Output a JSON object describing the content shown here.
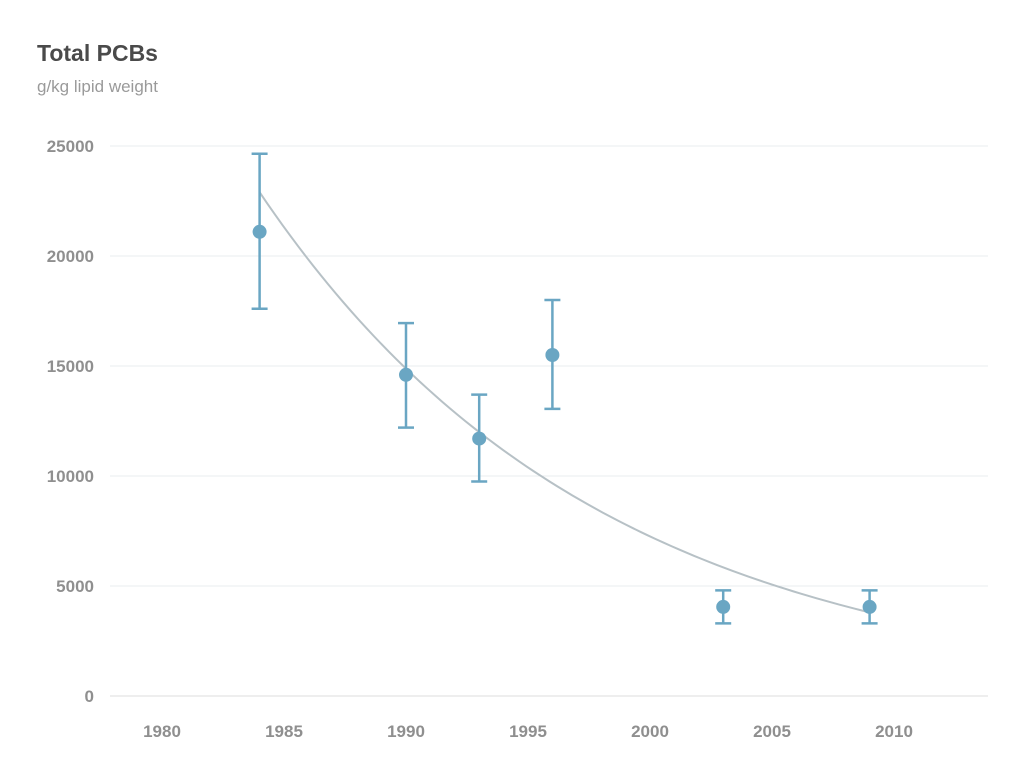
{
  "chart_data": {
    "type": "scatter",
    "title": "Total PCBs",
    "subtitle": "g/kg lipid weight",
    "xlabel": "",
    "ylabel": "",
    "xlim": [
      1978,
      2013
    ],
    "ylim": [
      0,
      25000
    ],
    "x_ticks": [
      1980,
      1985,
      1990,
      1995,
      2000,
      2005,
      2010
    ],
    "y_ticks": [
      0,
      5000,
      10000,
      15000,
      20000,
      25000
    ],
    "grid": true,
    "series": [
      {
        "x": [
          1984,
          1990,
          1993,
          1996,
          2003,
          2009
        ],
        "y": [
          21100,
          14600,
          11700,
          15500,
          4050,
          4050
        ],
        "error_low": [
          17600,
          12200,
          9750,
          13050,
          3300,
          3300
        ],
        "error_high": [
          24650,
          16950,
          13700,
          18000,
          4800,
          4800
        ],
        "color": "#6aa6c3"
      }
    ],
    "trend": {
      "type": "exponential",
      "x_range": [
        1984,
        2009
      ],
      "start_value": 22900,
      "end_value": 3800,
      "color": "#b7c1c6"
    }
  }
}
